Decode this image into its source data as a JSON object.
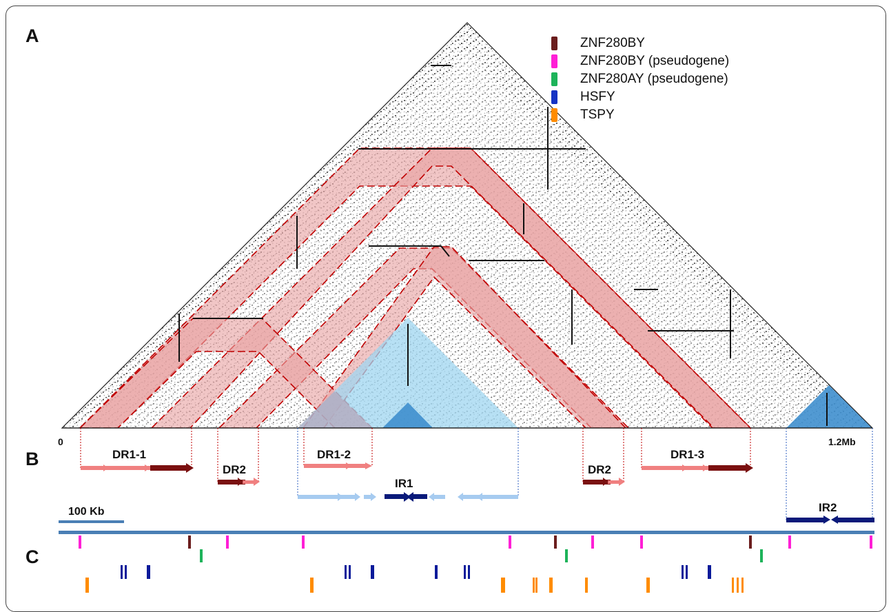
{
  "panels": {
    "a": "A",
    "b": "B",
    "c": "C"
  },
  "axis": {
    "start": "0",
    "end": "1.2Mb"
  },
  "scale_bar": {
    "label": "100 Kb"
  },
  "repeats": {
    "dr1_1": "DR1-1",
    "dr2_left": "DR2",
    "dr1_2": "DR1-2",
    "ir1": "IR1",
    "dr2_right": "DR2",
    "dr1_3": "DR1-3",
    "ir2": "IR2"
  },
  "legend": [
    {
      "label": "ZNF280BY",
      "color": "#6b1d1d"
    },
    {
      "label": "ZNF280BY (pseudogene)",
      "color": "#ff1fd6"
    },
    {
      "label": "ZNF280AY (pseudogene)",
      "color": "#1db35a"
    },
    {
      "label": "HSFY",
      "color": "#1533c4"
    },
    {
      "label": "TSPY",
      "color": "#ff8c00"
    }
  ],
  "colors": {
    "direct_repeat_band": "#e9a3a3",
    "direct_repeat_outline": "#c00000",
    "inverted_repeat_light": "#9fd6f0",
    "inverted_repeat_dark": "#3f8fce",
    "chromosome": "#4a7fb5",
    "dr_light": "#f08080",
    "dr_dark": "#7a1010",
    "ir_light": "#a6cbf0",
    "ir_dark": "#0a1a7a"
  }
}
